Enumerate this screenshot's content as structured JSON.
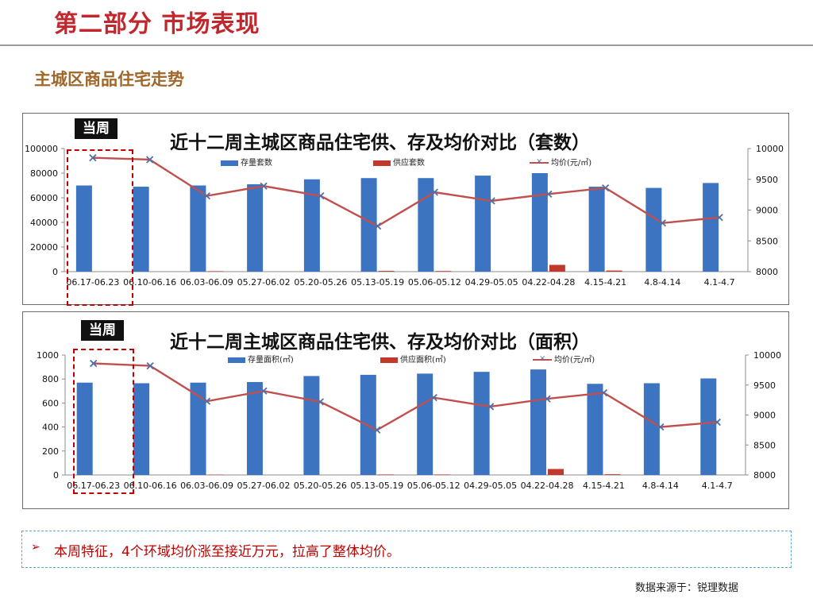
{
  "header": {
    "title": "第二部分 市场表现",
    "subtitle": "主城区商品住宅走势"
  },
  "colors": {
    "title": "#c0282d",
    "subtitle": "#a0672a",
    "bar_stock": "#3d74c2",
    "bar_supply": "#c0392b",
    "line_price": "#c0504d",
    "marker": "#4f6fa8",
    "highlight": "#c00000"
  },
  "chart_data": [
    {
      "type": "bar",
      "badge": "当周",
      "title": "近十二周主城区商品住宅供、存及均价对比（套数）",
      "categories": [
        "06.17-06.23",
        "06.10-06.16",
        "06.03-06.09",
        "05.27-06.02",
        "05.20-05.26",
        "05.13-05.19",
        "05.06-05.12",
        "04.29-05.05",
        "04.22-04.28",
        "4.15-4.21",
        "4.8-4.14",
        "4.1-4.7"
      ],
      "series": [
        {
          "name": "存量套数",
          "kind": "bar",
          "axis": "left",
          "values": [
            70000,
            69000,
            70000,
            71000,
            75000,
            76000,
            76000,
            78000,
            80000,
            69000,
            68000,
            72000
          ]
        },
        {
          "name": "供应套数",
          "kind": "bar",
          "axis": "left",
          "values": [
            0,
            0,
            400,
            0,
            0,
            600,
            500,
            0,
            5500,
            900,
            0,
            0
          ]
        },
        {
          "name": "均价(元/㎡)",
          "kind": "line",
          "axis": "right",
          "values": [
            9850,
            9820,
            9230,
            9390,
            9230,
            8740,
            9290,
            9150,
            9260,
            9360,
            8790,
            8880
          ]
        }
      ],
      "yleft": {
        "min": 0,
        "max": 100000,
        "ticks": [
          "0",
          "20000",
          "40000",
          "60000",
          "80000",
          "100000"
        ]
      },
      "yright": {
        "min": 8000,
        "max": 10000,
        "ticks": [
          "8000",
          "8500",
          "9000",
          "9500",
          "10000"
        ]
      },
      "legend_position": "top"
    },
    {
      "type": "bar",
      "badge": "当周",
      "title": "近十二周主城区商品住宅供、存及均价对比（面积）",
      "categories": [
        "06.17-06.23",
        "06.10-06.16",
        "06.03-06.09",
        "05.27-06.02",
        "05.20-05.26",
        "05.13-05.19",
        "05.06-05.12",
        "04.29-05.05",
        "04.22-04.28",
        "4.15-4.21",
        "4.8-4.14",
        "4.1-4.7"
      ],
      "series": [
        {
          "name": "存量面积(㎡)",
          "kind": "bar",
          "axis": "left",
          "values": [
            770,
            765,
            770,
            775,
            825,
            835,
            845,
            860,
            880,
            760,
            765,
            805
          ]
        },
        {
          "name": "供应面积(㎡)",
          "kind": "bar",
          "axis": "left",
          "values": [
            0,
            0,
            3,
            0,
            0,
            4,
            4,
            0,
            50,
            6,
            0,
            0
          ]
        },
        {
          "name": "均价(元/㎡)",
          "kind": "line",
          "axis": "right",
          "values": [
            9860,
            9820,
            9230,
            9400,
            9220,
            8750,
            9290,
            9140,
            9270,
            9370,
            8800,
            8880
          ]
        }
      ],
      "yleft": {
        "min": 0,
        "max": 1000,
        "ticks": [
          "0",
          "200",
          "400",
          "600",
          "800",
          "1000"
        ]
      },
      "yright": {
        "min": 8000,
        "max": 10000,
        "ticks": [
          "8000",
          "8500",
          "9000",
          "9500",
          "10000"
        ]
      },
      "legend_position": "top"
    }
  ],
  "note": {
    "bullet": "➢",
    "text": "本周特征，4个环域均价涨至接近万元，拉高了整体均价。"
  },
  "source": "数据来源于：锐理数据"
}
